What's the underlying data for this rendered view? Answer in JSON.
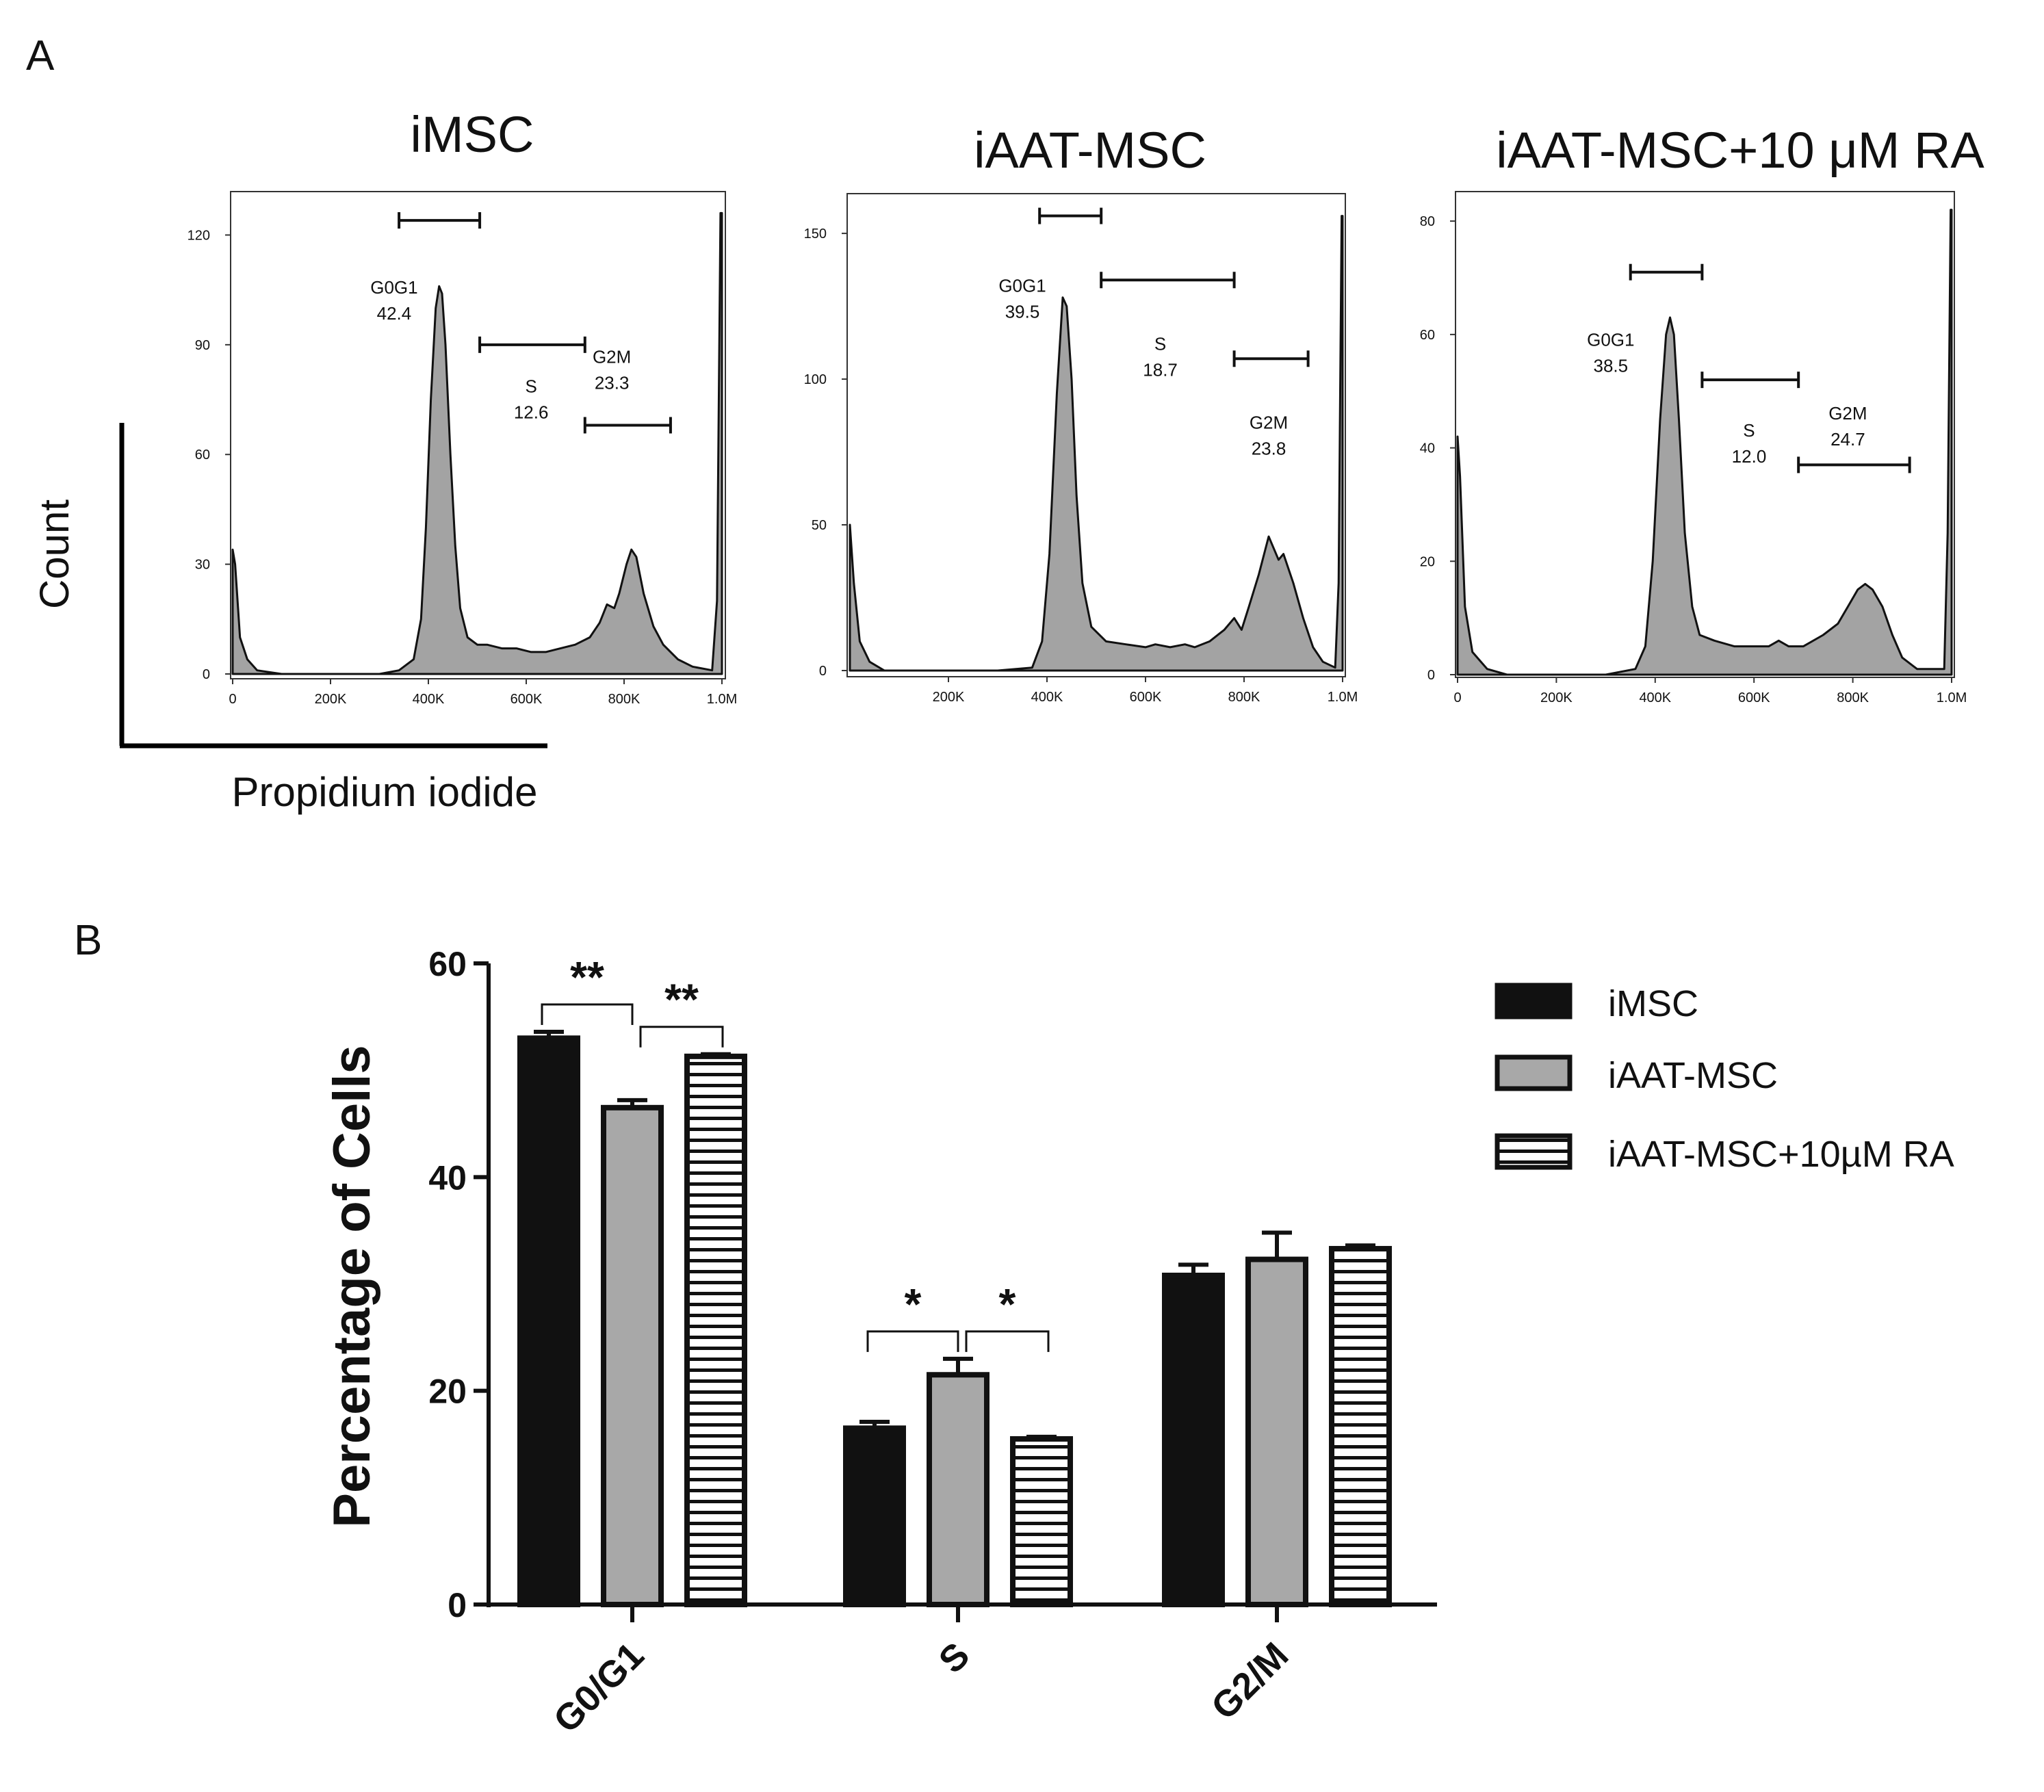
{
  "panel_a": {
    "letter": "A"
  },
  "panel_b": {
    "letter": "B"
  },
  "chart_data": [
    {
      "id": "hist1",
      "type": "area",
      "title": "iMSC",
      "xlabel": "Propidium iodide",
      "ylabel": "Count",
      "xlim": [
        0,
        1000000
      ],
      "ylim": [
        0,
        130
      ],
      "x_ticks": [
        {
          "v": 0,
          "label": "0"
        },
        {
          "v": 200000,
          "label": "200K"
        },
        {
          "v": 400000,
          "label": "400K"
        },
        {
          "v": 600000,
          "label": "600K"
        },
        {
          "v": 800000,
          "label": "800K"
        },
        {
          "v": 1000000,
          "label": "1.0M"
        }
      ],
      "y_ticks": [
        {
          "v": 0,
          "label": "0"
        },
        {
          "v": 30,
          "label": "30"
        },
        {
          "v": 60,
          "label": "60"
        },
        {
          "v": 90,
          "label": "90"
        },
        {
          "v": 120,
          "label": "120"
        }
      ],
      "gates": [
        {
          "name": "G0G1",
          "value": "42.4",
          "range": [
            340000,
            505000
          ],
          "y": 124,
          "label_v": [
            330000,
            104
          ]
        },
        {
          "name": "S",
          "value": "12.6",
          "range": [
            505000,
            720000
          ],
          "y": 90,
          "label_v": [
            610000,
            77
          ]
        },
        {
          "name": "G2M",
          "value": "23.3",
          "range": [
            720000,
            895000
          ],
          "y": 68,
          "label_v": [
            775000,
            85
          ]
        }
      ],
      "curve": [
        [
          0,
          34
        ],
        [
          5000,
          30
        ],
        [
          15000,
          10
        ],
        [
          30000,
          4
        ],
        [
          50000,
          1
        ],
        [
          100000,
          0
        ],
        [
          200000,
          0
        ],
        [
          300000,
          0
        ],
        [
          340000,
          1
        ],
        [
          370000,
          4
        ],
        [
          385000,
          15
        ],
        [
          395000,
          40
        ],
        [
          405000,
          75
        ],
        [
          415000,
          100
        ],
        [
          422000,
          106
        ],
        [
          428000,
          104
        ],
        [
          435000,
          90
        ],
        [
          445000,
          60
        ],
        [
          455000,
          35
        ],
        [
          465000,
          18
        ],
        [
          480000,
          10
        ],
        [
          500000,
          8
        ],
        [
          520000,
          8
        ],
        [
          550000,
          7
        ],
        [
          580000,
          7
        ],
        [
          610000,
          6
        ],
        [
          640000,
          6
        ],
        [
          670000,
          7
        ],
        [
          700000,
          8
        ],
        [
          730000,
          10
        ],
        [
          750000,
          14
        ],
        [
          765000,
          19
        ],
        [
          780000,
          18
        ],
        [
          790000,
          22
        ],
        [
          805000,
          30
        ],
        [
          815000,
          34
        ],
        [
          825000,
          32
        ],
        [
          840000,
          22
        ],
        [
          860000,
          13
        ],
        [
          880000,
          8
        ],
        [
          910000,
          4
        ],
        [
          940000,
          2
        ],
        [
          980000,
          1
        ],
        [
          990000,
          20
        ],
        [
          997000,
          126
        ],
        [
          1000000,
          126
        ]
      ]
    },
    {
      "id": "hist2",
      "type": "area",
      "title": "iAAT-MSC",
      "xlim": [
        0,
        1000000
      ],
      "ylim": [
        0,
        162
      ],
      "x_ticks": [
        {
          "v": 200000,
          "label": "200K"
        },
        {
          "v": 400000,
          "label": "400K"
        },
        {
          "v": 600000,
          "label": "600K"
        },
        {
          "v": 800000,
          "label": "800K"
        },
        {
          "v": 1000000,
          "label": "1.0M"
        }
      ],
      "y_ticks": [
        {
          "v": 0,
          "label": "0"
        },
        {
          "v": 50,
          "label": "50"
        },
        {
          "v": 100,
          "label": "100"
        },
        {
          "v": 150,
          "label": "150"
        }
      ],
      "gates": [
        {
          "name": "G0G1",
          "value": "39.5",
          "range": [
            385000,
            510000
          ],
          "y": 156,
          "label_v": [
            350000,
            130
          ]
        },
        {
          "name": "S",
          "value": "18.7",
          "range": [
            510000,
            780000
          ],
          "y": 134,
          "label_v": [
            630000,
            110
          ]
        },
        {
          "name": "G2M",
          "value": "23.8",
          "range": [
            780000,
            930000
          ],
          "y": 107,
          "label_v": [
            850000,
            83
          ]
        }
      ],
      "curve": [
        [
          0,
          50
        ],
        [
          8000,
          30
        ],
        [
          20000,
          10
        ],
        [
          40000,
          3
        ],
        [
          70000,
          0
        ],
        [
          200000,
          0
        ],
        [
          300000,
          0
        ],
        [
          370000,
          1
        ],
        [
          390000,
          10
        ],
        [
          405000,
          40
        ],
        [
          420000,
          95
        ],
        [
          432000,
          128
        ],
        [
          440000,
          125
        ],
        [
          450000,
          100
        ],
        [
          460000,
          60
        ],
        [
          472000,
          30
        ],
        [
          490000,
          15
        ],
        [
          520000,
          10
        ],
        [
          560000,
          9
        ],
        [
          600000,
          8
        ],
        [
          620000,
          9
        ],
        [
          650000,
          8
        ],
        [
          680000,
          9
        ],
        [
          700000,
          8
        ],
        [
          730000,
          10
        ],
        [
          760000,
          14
        ],
        [
          780000,
          18
        ],
        [
          795000,
          14
        ],
        [
          810000,
          22
        ],
        [
          830000,
          33
        ],
        [
          850000,
          46
        ],
        [
          860000,
          42
        ],
        [
          870000,
          38
        ],
        [
          880000,
          40
        ],
        [
          900000,
          30
        ],
        [
          920000,
          18
        ],
        [
          940000,
          8
        ],
        [
          960000,
          3
        ],
        [
          985000,
          1
        ],
        [
          992000,
          30
        ],
        [
          998000,
          156
        ],
        [
          1000000,
          156
        ]
      ]
    },
    {
      "id": "hist3",
      "type": "area",
      "title": "iAAT-MSC+10 μM RA",
      "xlim": [
        0,
        1000000
      ],
      "ylim": [
        0,
        84
      ],
      "x_ticks": [
        {
          "v": 0,
          "label": "0"
        },
        {
          "v": 200000,
          "label": "200K"
        },
        {
          "v": 400000,
          "label": "400K"
        },
        {
          "v": 600000,
          "label": "600K"
        },
        {
          "v": 800000,
          "label": "800K"
        },
        {
          "v": 1000000,
          "label": "1.0M"
        }
      ],
      "y_ticks": [
        {
          "v": 0,
          "label": "0"
        },
        {
          "v": 20,
          "label": "20"
        },
        {
          "v": 40,
          "label": "40"
        },
        {
          "v": 60,
          "label": "60"
        },
        {
          "v": 80,
          "label": "80"
        }
      ],
      "gates": [
        {
          "name": "G0G1",
          "value": "38.5",
          "range": [
            350000,
            495000
          ],
          "y": 71,
          "label_v": [
            310000,
            58
          ]
        },
        {
          "name": "S",
          "value": "12.0",
          "range": [
            495000,
            690000
          ],
          "y": 52,
          "label_v": [
            590000,
            42
          ]
        },
        {
          "name": "G2M",
          "value": "24.7",
          "range": [
            690000,
            915000
          ],
          "y": 37,
          "label_v": [
            790000,
            45
          ]
        }
      ],
      "curve": [
        [
          0,
          42
        ],
        [
          5000,
          35
        ],
        [
          15000,
          12
        ],
        [
          30000,
          4
        ],
        [
          60000,
          1
        ],
        [
          100000,
          0
        ],
        [
          200000,
          0
        ],
        [
          300000,
          0
        ],
        [
          360000,
          1
        ],
        [
          380000,
          5
        ],
        [
          395000,
          20
        ],
        [
          410000,
          45
        ],
        [
          422000,
          60
        ],
        [
          430000,
          63
        ],
        [
          438000,
          60
        ],
        [
          448000,
          45
        ],
        [
          460000,
          25
        ],
        [
          475000,
          12
        ],
        [
          490000,
          7
        ],
        [
          520000,
          6
        ],
        [
          560000,
          5
        ],
        [
          600000,
          5
        ],
        [
          630000,
          5
        ],
        [
          650000,
          6
        ],
        [
          670000,
          5
        ],
        [
          700000,
          5
        ],
        [
          740000,
          7
        ],
        [
          770000,
          9
        ],
        [
          790000,
          12
        ],
        [
          810000,
          15
        ],
        [
          825000,
          16
        ],
        [
          840000,
          15
        ],
        [
          860000,
          12
        ],
        [
          880000,
          7
        ],
        [
          900000,
          3
        ],
        [
          930000,
          1
        ],
        [
          985000,
          1
        ],
        [
          992000,
          25
        ],
        [
          998000,
          82
        ],
        [
          1000000,
          82
        ]
      ]
    },
    {
      "id": "bars",
      "type": "bar",
      "ylabel": "Percentage of Cells",
      "ylim": [
        0,
        60
      ],
      "y_ticks": [
        0,
        20,
        40,
        60
      ],
      "categories": [
        "G0/G1",
        "S",
        "G2/M"
      ],
      "series": [
        {
          "name": "iMSC",
          "values": [
            53.0,
            16.5,
            30.8
          ],
          "errors": [
            0.6,
            0.6,
            1.0
          ],
          "fill": "#111111",
          "pattern": "solid"
        },
        {
          "name": "iAAT-MSC",
          "values": [
            46.5,
            21.5,
            32.3
          ],
          "errors": [
            0.7,
            1.5,
            2.5
          ],
          "fill": "#a8a8a8",
          "pattern": "solid"
        },
        {
          "name": "iAAT-MSC+10µM RA",
          "values": [
            51.3,
            15.5,
            33.3
          ],
          "errors": [
            0.2,
            0.2,
            0.3
          ],
          "fill": "#ffffff",
          "pattern": "stripes"
        }
      ],
      "significance": [
        {
          "category": "G0/G1",
          "from": 0,
          "to": 1,
          "label": "**"
        },
        {
          "category": "G0/G1",
          "from": 1,
          "to": 2,
          "label": "**"
        },
        {
          "category": "S",
          "from": 0,
          "to": 1,
          "label": "*"
        },
        {
          "category": "S",
          "from": 1,
          "to": 2,
          "label": "*"
        }
      ]
    }
  ]
}
